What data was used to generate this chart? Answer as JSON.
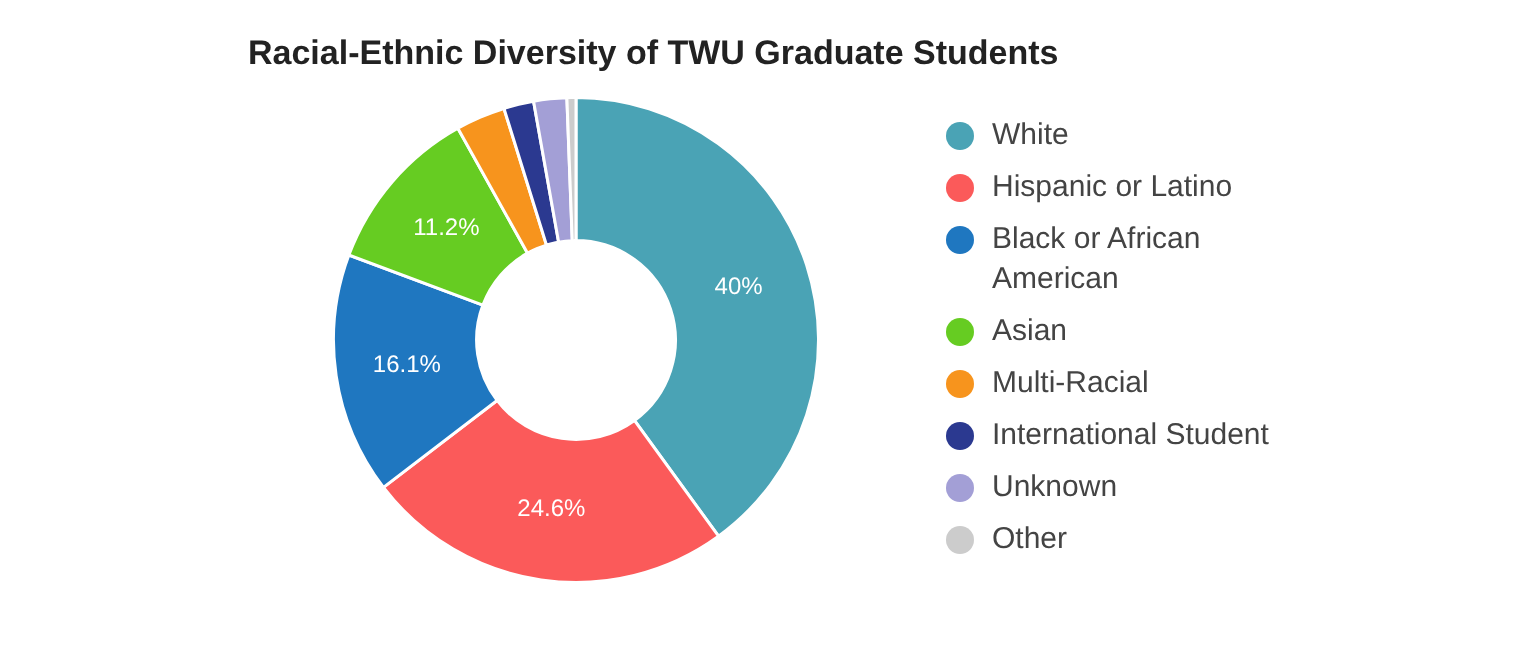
{
  "chart_data": {
    "type": "donut",
    "title": "Racial-Ethnic Diversity of TWU Graduate Students",
    "categories": [
      "White",
      "Hispanic or Latino",
      "Black or African American",
      "Asian",
      "Multi-Racial",
      "International Student",
      "Unknown",
      "Other"
    ],
    "values": [
      40,
      24.6,
      16.1,
      11.2,
      3.3,
      2.0,
      2.2,
      0.6
    ],
    "colors": [
      "#4aa3b5",
      "#fb5a5a",
      "#1f77c0",
      "#66cc22",
      "#f7941d",
      "#2b3990",
      "#a39fd6",
      "#cccccc"
    ],
    "value_labels": [
      "40%",
      "24.6%",
      "16.1%",
      "11.2%",
      null,
      null,
      null,
      null
    ],
    "legend": "right"
  }
}
